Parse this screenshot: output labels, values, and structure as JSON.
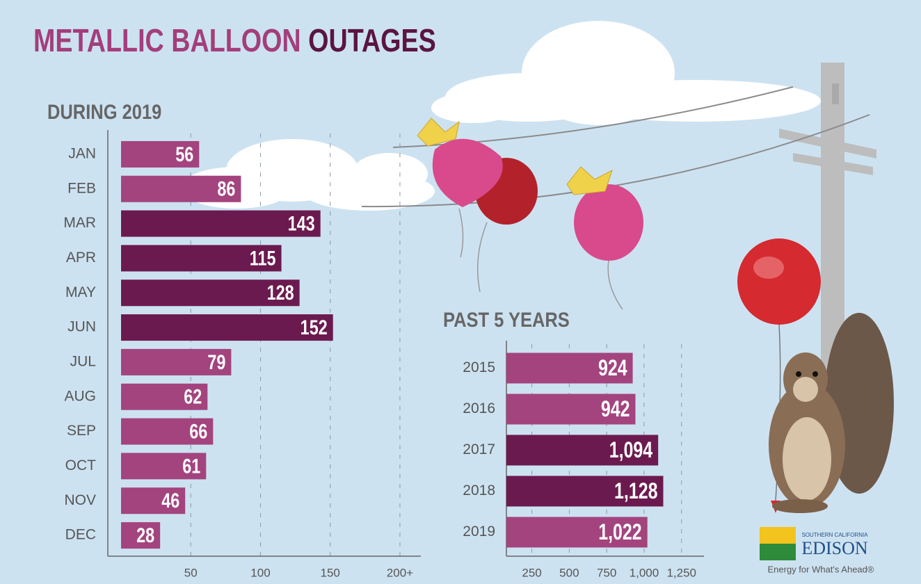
{
  "title": [
    "METALLIC BALLOON",
    "OUTAGES"
  ],
  "chart_data": [
    {
      "type": "hbar",
      "subtitle": "DURING 2019",
      "categories": [
        "JAN",
        "FEB",
        "MAR",
        "APR",
        "MAY",
        "JUN",
        "JUL",
        "AUG",
        "SEP",
        "OCT",
        "NOV",
        "DEC"
      ],
      "values": [
        56,
        86,
        143,
        115,
        128,
        152,
        79,
        62,
        66,
        61,
        46,
        28
      ],
      "colors": [
        "#a3447f",
        "#a3447f",
        "#6b1a4f",
        "#6b1a4f",
        "#6b1a4f",
        "#6b1a4f",
        "#a3447f",
        "#a3447f",
        "#a3447f",
        "#a3447f",
        "#a3447f",
        "#a3447f"
      ],
      "xlim": [
        -7,
        215
      ],
      "xticks": [
        50,
        100,
        150,
        {
          "value": 200,
          "label": "200+"
        }
      ],
      "grid": true
    },
    {
      "type": "hbar",
      "subtitle": "PAST 5 YEARS",
      "categories": [
        "2015",
        "2016",
        "2017",
        "2018",
        "2019"
      ],
      "values": [
        924,
        942,
        1094,
        1128,
        1022
      ],
      "value_labels": [
        "924",
        "942",
        "1,094",
        "1,128",
        "1,022"
      ],
      "colors": [
        "#a3447f",
        "#a3447f",
        "#6b1a4f",
        "#6b1a4f",
        "#a3447f"
      ],
      "xlim": [
        80,
        1400
      ],
      "xticks": [
        250,
        500,
        750,
        {
          "value": 1000,
          "label": "1,000"
        },
        {
          "value": 1250,
          "label": "1,250"
        }
      ],
      "grid": true
    }
  ],
  "brand": {
    "region": "SOUTHERN CALIFORNIA",
    "name": "EDISON",
    "tagline": "Energy for What's Ahead®"
  }
}
